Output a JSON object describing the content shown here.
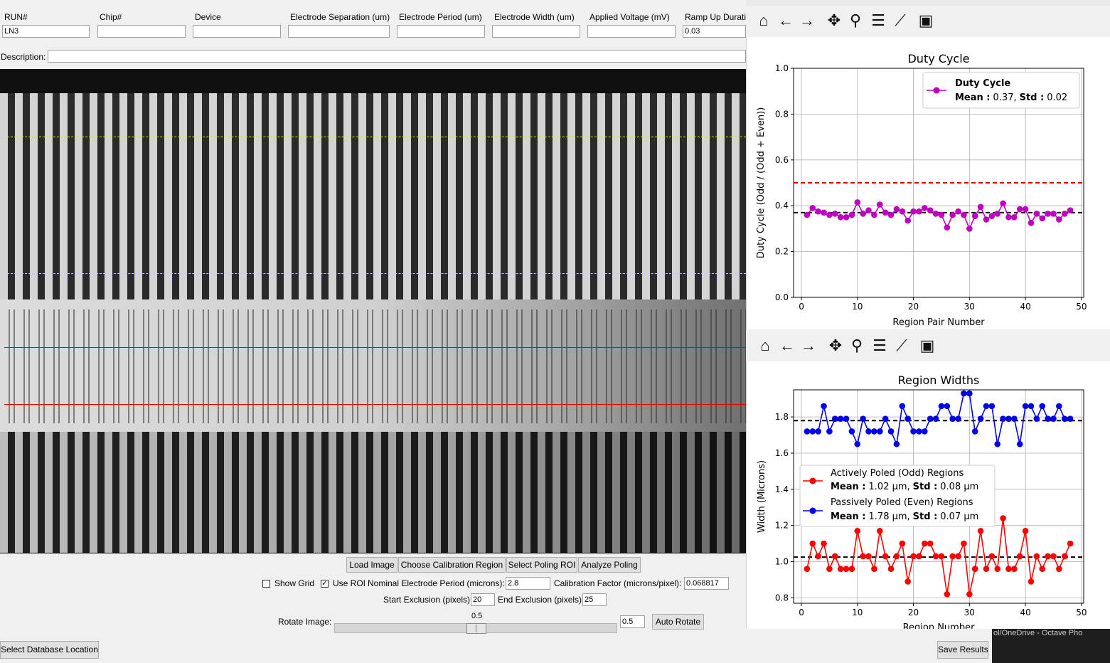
{
  "fields": [
    {
      "label": "RUN#",
      "value": "LN3"
    },
    {
      "label": "Chip#",
      "value": ""
    },
    {
      "label": "Device",
      "value": ""
    },
    {
      "label": "Electrode Separation (um)",
      "value": ""
    },
    {
      "label": "Electrode Period (um)",
      "value": ""
    },
    {
      "label": "Electrode Width (um)",
      "value": ""
    },
    {
      "label": "Applied Voltage (mV)",
      "value": ""
    },
    {
      "label": "Ramp Up Durati",
      "value": "0.03"
    }
  ],
  "description": {
    "label": "Description:",
    "value": ""
  },
  "buttons": {
    "load_image": "Load Image",
    "choose_calibration": "Choose Calibration Region",
    "select_poling_roi": "Select Poling ROI",
    "analyze_poling": "Analyze Poling",
    "auto_rotate": "Auto Rotate",
    "select_database": "Select Database Location",
    "save_results": "Save Results"
  },
  "options": {
    "show_grid": "Show Grid",
    "show_grid_checked": false,
    "use_roi": "Use ROI",
    "use_roi_checked": true,
    "nominal_period_label": "Nominal Electrode Period (microns):",
    "nominal_period_value": "2.8",
    "calibration_label": "Calibration Factor (microns/pixel):",
    "calibration_value": "0.068817",
    "start_exclusion_label": "Start Exclusion (pixels):",
    "start_exclusion_value": "20",
    "end_exclusion_label": "End Exclusion (pixels):",
    "end_exclusion_value": "25",
    "rotate_label": "Rotate Image:",
    "rotate_slider_value": "0.5",
    "rotate_value": "0.5"
  },
  "background_text": "ol/OneDrive - Octave Pho",
  "toolbar_icons": [
    "home-icon",
    "back-icon",
    "forward-icon",
    "pan-icon",
    "zoom-icon",
    "configure-icon",
    "edit-axis-icon",
    "save-icon"
  ],
  "chart_data": [
    {
      "type": "line",
      "title": "Duty Cycle",
      "xlabel": "Region Pair Number",
      "ylabel": "Duty Cycle (Odd / (Odd + Even))",
      "xlim": [
        -1.4,
        50.4
      ],
      "ylim": [
        0.0,
        1.0
      ],
      "xticks": [
        "0",
        "10",
        "20",
        "30",
        "40",
        "50"
      ],
      "yticks": [
        "0.0",
        "0.2",
        "0.4",
        "0.6",
        "0.8",
        "1.0"
      ],
      "grid": true,
      "series": [
        {
          "name": "Duty Cycle",
          "color": "#bf00bf",
          "x": [
            1,
            2,
            3,
            4,
            5,
            6,
            7,
            8,
            9,
            10,
            11,
            12,
            13,
            14,
            15,
            16,
            17,
            18,
            19,
            20,
            21,
            22,
            23,
            24,
            25,
            26,
            27,
            28,
            29,
            30,
            31,
            32,
            33,
            34,
            35,
            36,
            37,
            38,
            39,
            40,
            41,
            42,
            43,
            44,
            45,
            46,
            47,
            48
          ],
          "values": [
            0.36,
            0.39,
            0.375,
            0.37,
            0.36,
            0.365,
            0.35,
            0.35,
            0.36,
            0.415,
            0.365,
            0.38,
            0.36,
            0.405,
            0.37,
            0.36,
            0.385,
            0.375,
            0.335,
            0.375,
            0.375,
            0.39,
            0.38,
            0.365,
            0.36,
            0.305,
            0.36,
            0.375,
            0.36,
            0.3,
            0.355,
            0.395,
            0.34,
            0.355,
            0.365,
            0.41,
            0.35,
            0.35,
            0.385,
            0.385,
            0.325,
            0.365,
            0.345,
            0.365,
            0.365,
            0.34,
            0.365,
            0.38
          ]
        }
      ],
      "hlines": [
        {
          "y": 0.5,
          "color": "#e00000",
          "style": "dashed"
        },
        {
          "y": 0.37,
          "color": "#000000",
          "style": "dashed"
        }
      ],
      "legend": {
        "placement": "top-right",
        "entries": [
          {
            "title": "Duty Cycle",
            "mean_label": "Mean :",
            "mean": "0.37,",
            "std_label": "Std :",
            "std": "0.02",
            "color": "#bf00bf"
          }
        ]
      }
    },
    {
      "type": "line",
      "title": "Region Widths",
      "xlabel": "Region Number",
      "ylabel": "Width (Microns)",
      "xlim": [
        -1.4,
        50.4
      ],
      "ylim": [
        0.77,
        1.95
      ],
      "xticks": [
        "0",
        "10",
        "20",
        "30",
        "40",
        "50"
      ],
      "yticks": [
        "0.8",
        "1.0",
        "1.2",
        "1.4",
        "1.6",
        "1.8"
      ],
      "ytick_values": [
        0.8,
        1.0,
        1.2,
        1.4,
        1.6,
        1.8
      ],
      "grid": true,
      "series": [
        {
          "name": "Actively Poled (Odd) Regions",
          "color": "#ff0000",
          "x": [
            1,
            2,
            3,
            4,
            5,
            6,
            7,
            8,
            9,
            10,
            11,
            12,
            13,
            14,
            15,
            16,
            17,
            18,
            19,
            20,
            21,
            22,
            23,
            24,
            25,
            26,
            27,
            28,
            29,
            30,
            31,
            32,
            33,
            34,
            35,
            36,
            37,
            38,
            39,
            40,
            41,
            42,
            43,
            44,
            45,
            46,
            47,
            48
          ],
          "values": [
            0.96,
            1.1,
            1.03,
            1.1,
            0.96,
            1.03,
            0.96,
            0.96,
            0.96,
            1.17,
            1.03,
            1.03,
            0.96,
            1.17,
            1.03,
            0.96,
            1.03,
            1.1,
            0.89,
            1.03,
            1.03,
            1.1,
            1.1,
            1.03,
            1.03,
            0.82,
            1.03,
            1.03,
            1.1,
            0.82,
            0.96,
            1.17,
            0.96,
            1.03,
            0.96,
            1.24,
            0.96,
            0.96,
            1.03,
            1.17,
            0.89,
            1.03,
            0.96,
            1.03,
            1.03,
            0.96,
            1.03,
            1.1
          ]
        },
        {
          "name": "Passively Poled (Even) Regions",
          "color": "#0000ee",
          "x": [
            1,
            2,
            3,
            4,
            5,
            6,
            7,
            8,
            9,
            10,
            11,
            12,
            13,
            14,
            15,
            16,
            17,
            18,
            19,
            20,
            21,
            22,
            23,
            24,
            25,
            26,
            27,
            28,
            29,
            30,
            31,
            32,
            33,
            34,
            35,
            36,
            37,
            38,
            39,
            40,
            41,
            42,
            43,
            44,
            45,
            46,
            47,
            48
          ],
          "values": [
            1.72,
            1.72,
            1.72,
            1.86,
            1.72,
            1.79,
            1.79,
            1.79,
            1.72,
            1.65,
            1.79,
            1.72,
            1.72,
            1.72,
            1.79,
            1.72,
            1.65,
            1.86,
            1.79,
            1.72,
            1.72,
            1.72,
            1.79,
            1.79,
            1.86,
            1.86,
            1.79,
            1.79,
            1.93,
            1.93,
            1.72,
            1.79,
            1.86,
            1.86,
            1.65,
            1.79,
            1.79,
            1.79,
            1.65,
            1.86,
            1.86,
            1.79,
            1.86,
            1.79,
            1.79,
            1.86,
            1.79,
            1.79
          ]
        }
      ],
      "hlines": [
        {
          "y": 1.78,
          "color": "#000000",
          "style": "dashed"
        },
        {
          "y": 1.025,
          "color": "#000000",
          "style": "dashed"
        }
      ],
      "legend": {
        "placement": "center-left",
        "entries": [
          {
            "title": "Actively Poled (Odd) Regions",
            "mean_label": "Mean :",
            "mean": "1.02 µm,",
            "std_label": "Std :",
            "std": "0.08 µm",
            "color": "#ff0000"
          },
          {
            "title": "Passively Poled (Even) Regions",
            "mean_label": "Mean :",
            "mean": "1.78 µm,",
            "std_label": "Std :",
            "std": "0.07 µm",
            "color": "#0000ee"
          }
        ]
      }
    }
  ]
}
